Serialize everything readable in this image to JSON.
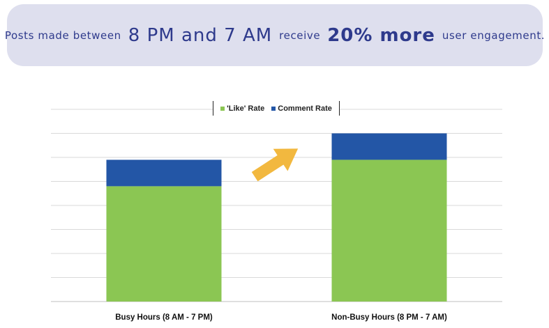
{
  "banner": {
    "part1": "Posts made between",
    "part2": "8 PM and 7 AM",
    "part3": "receive",
    "part4": "20% more",
    "part5": "user engagement."
  },
  "colors": {
    "like": "#8bc653",
    "comment": "#2356a6",
    "arrow": "#f2b83f",
    "banner_bg": "#dedfee",
    "banner_text": "#2e3a8c"
  },
  "chart_data": {
    "type": "bar",
    "stacked": true,
    "categories": [
      "Busy Hours (8 AM - 7 PM)",
      "Non-Busy Hours (8 PM - 7 AM)"
    ],
    "series": [
      {
        "name": "'Like' Rate",
        "values": [
          4.8,
          5.9
        ]
      },
      {
        "name": "Comment Rate",
        "values": [
          1.1,
          1.1
        ]
      }
    ],
    "ylim": [
      0,
      8
    ],
    "grid": true,
    "legend_position": "top-center",
    "annotation": "upward-arrow"
  }
}
